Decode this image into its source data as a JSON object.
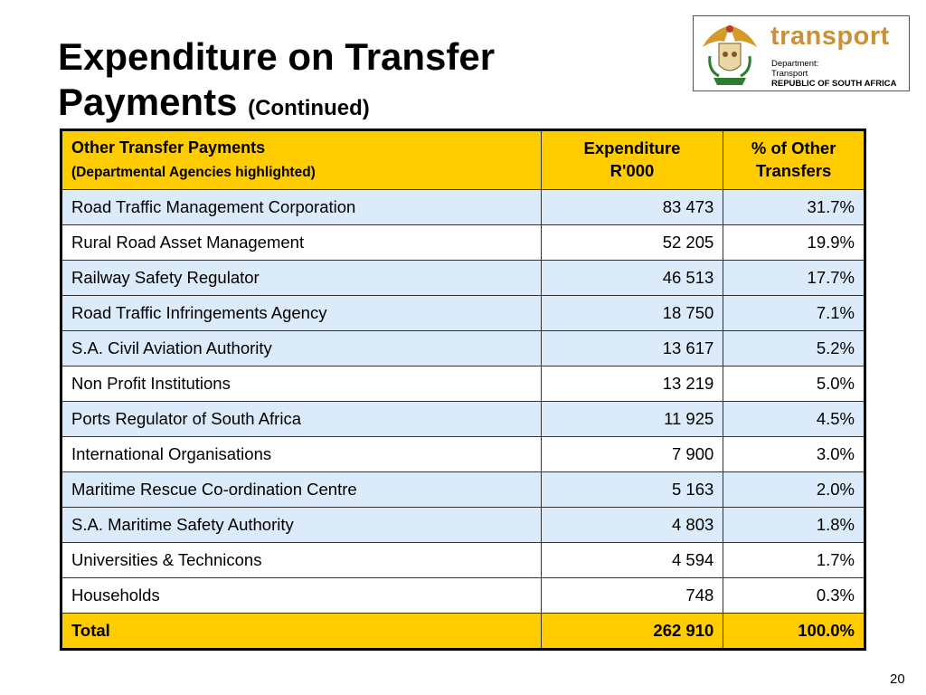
{
  "title": {
    "line1": "Expenditure on Transfer",
    "line2": "Payments",
    "continued": "(Continued)"
  },
  "logo": {
    "brand": "transport",
    "dept_line1": "Department:",
    "dept_line2": "Transport",
    "dept_line3": "REPUBLIC OF SOUTH AFRICA"
  },
  "table": {
    "headers": {
      "col1_line1": "Other Transfer Payments",
      "col1_line2": "(Departmental Agencies highlighted)",
      "col2_line1": "Expenditure",
      "col2_line2": "R'000",
      "col3_line1": "% of Other",
      "col3_line2": "Transfers"
    },
    "rows": [
      {
        "name": "Road Traffic Management Corporation",
        "expenditure": "83 473",
        "percent": "31.7%",
        "highlighted": true
      },
      {
        "name": "Rural Road Asset Management",
        "expenditure": "52 205",
        "percent": "19.9%",
        "highlighted": false
      },
      {
        "name": "Railway Safety Regulator",
        "expenditure": "46 513",
        "percent": "17.7%",
        "highlighted": true
      },
      {
        "name": "Road Traffic Infringements Agency",
        "expenditure": "18 750",
        "percent": "7.1%",
        "highlighted": true
      },
      {
        "name": "S.A. Civil Aviation Authority",
        "expenditure": "13 617",
        "percent": "5.2%",
        "highlighted": true
      },
      {
        "name": "Non Profit Institutions",
        "expenditure": "13 219",
        "percent": "5.0%",
        "highlighted": false
      },
      {
        "name": "Ports Regulator of South Africa",
        "expenditure": "11 925",
        "percent": "4.5%",
        "highlighted": true
      },
      {
        "name": "International Organisations",
        "expenditure": "7 900",
        "percent": "3.0%",
        "highlighted": false
      },
      {
        "name": "Maritime Rescue Co-ordination Centre",
        "expenditure": "5 163",
        "percent": "2.0%",
        "highlighted": true
      },
      {
        "name": "S.A. Maritime Safety Authority",
        "expenditure": "4 803",
        "percent": "1.8%",
        "highlighted": true
      },
      {
        "name": "Universities & Technicons",
        "expenditure": "4 594",
        "percent": "1.7%",
        "highlighted": false
      },
      {
        "name": "Households",
        "expenditure": "748",
        "percent": "0.3%",
        "highlighted": false
      }
    ],
    "total": {
      "label": "Total",
      "expenditure": "262 910",
      "percent": "100.0%"
    }
  },
  "page_number": "20",
  "colors": {
    "header_bg": "#ffcc00",
    "highlight_bg": "#dcebfa",
    "brand": "#c8913a"
  }
}
